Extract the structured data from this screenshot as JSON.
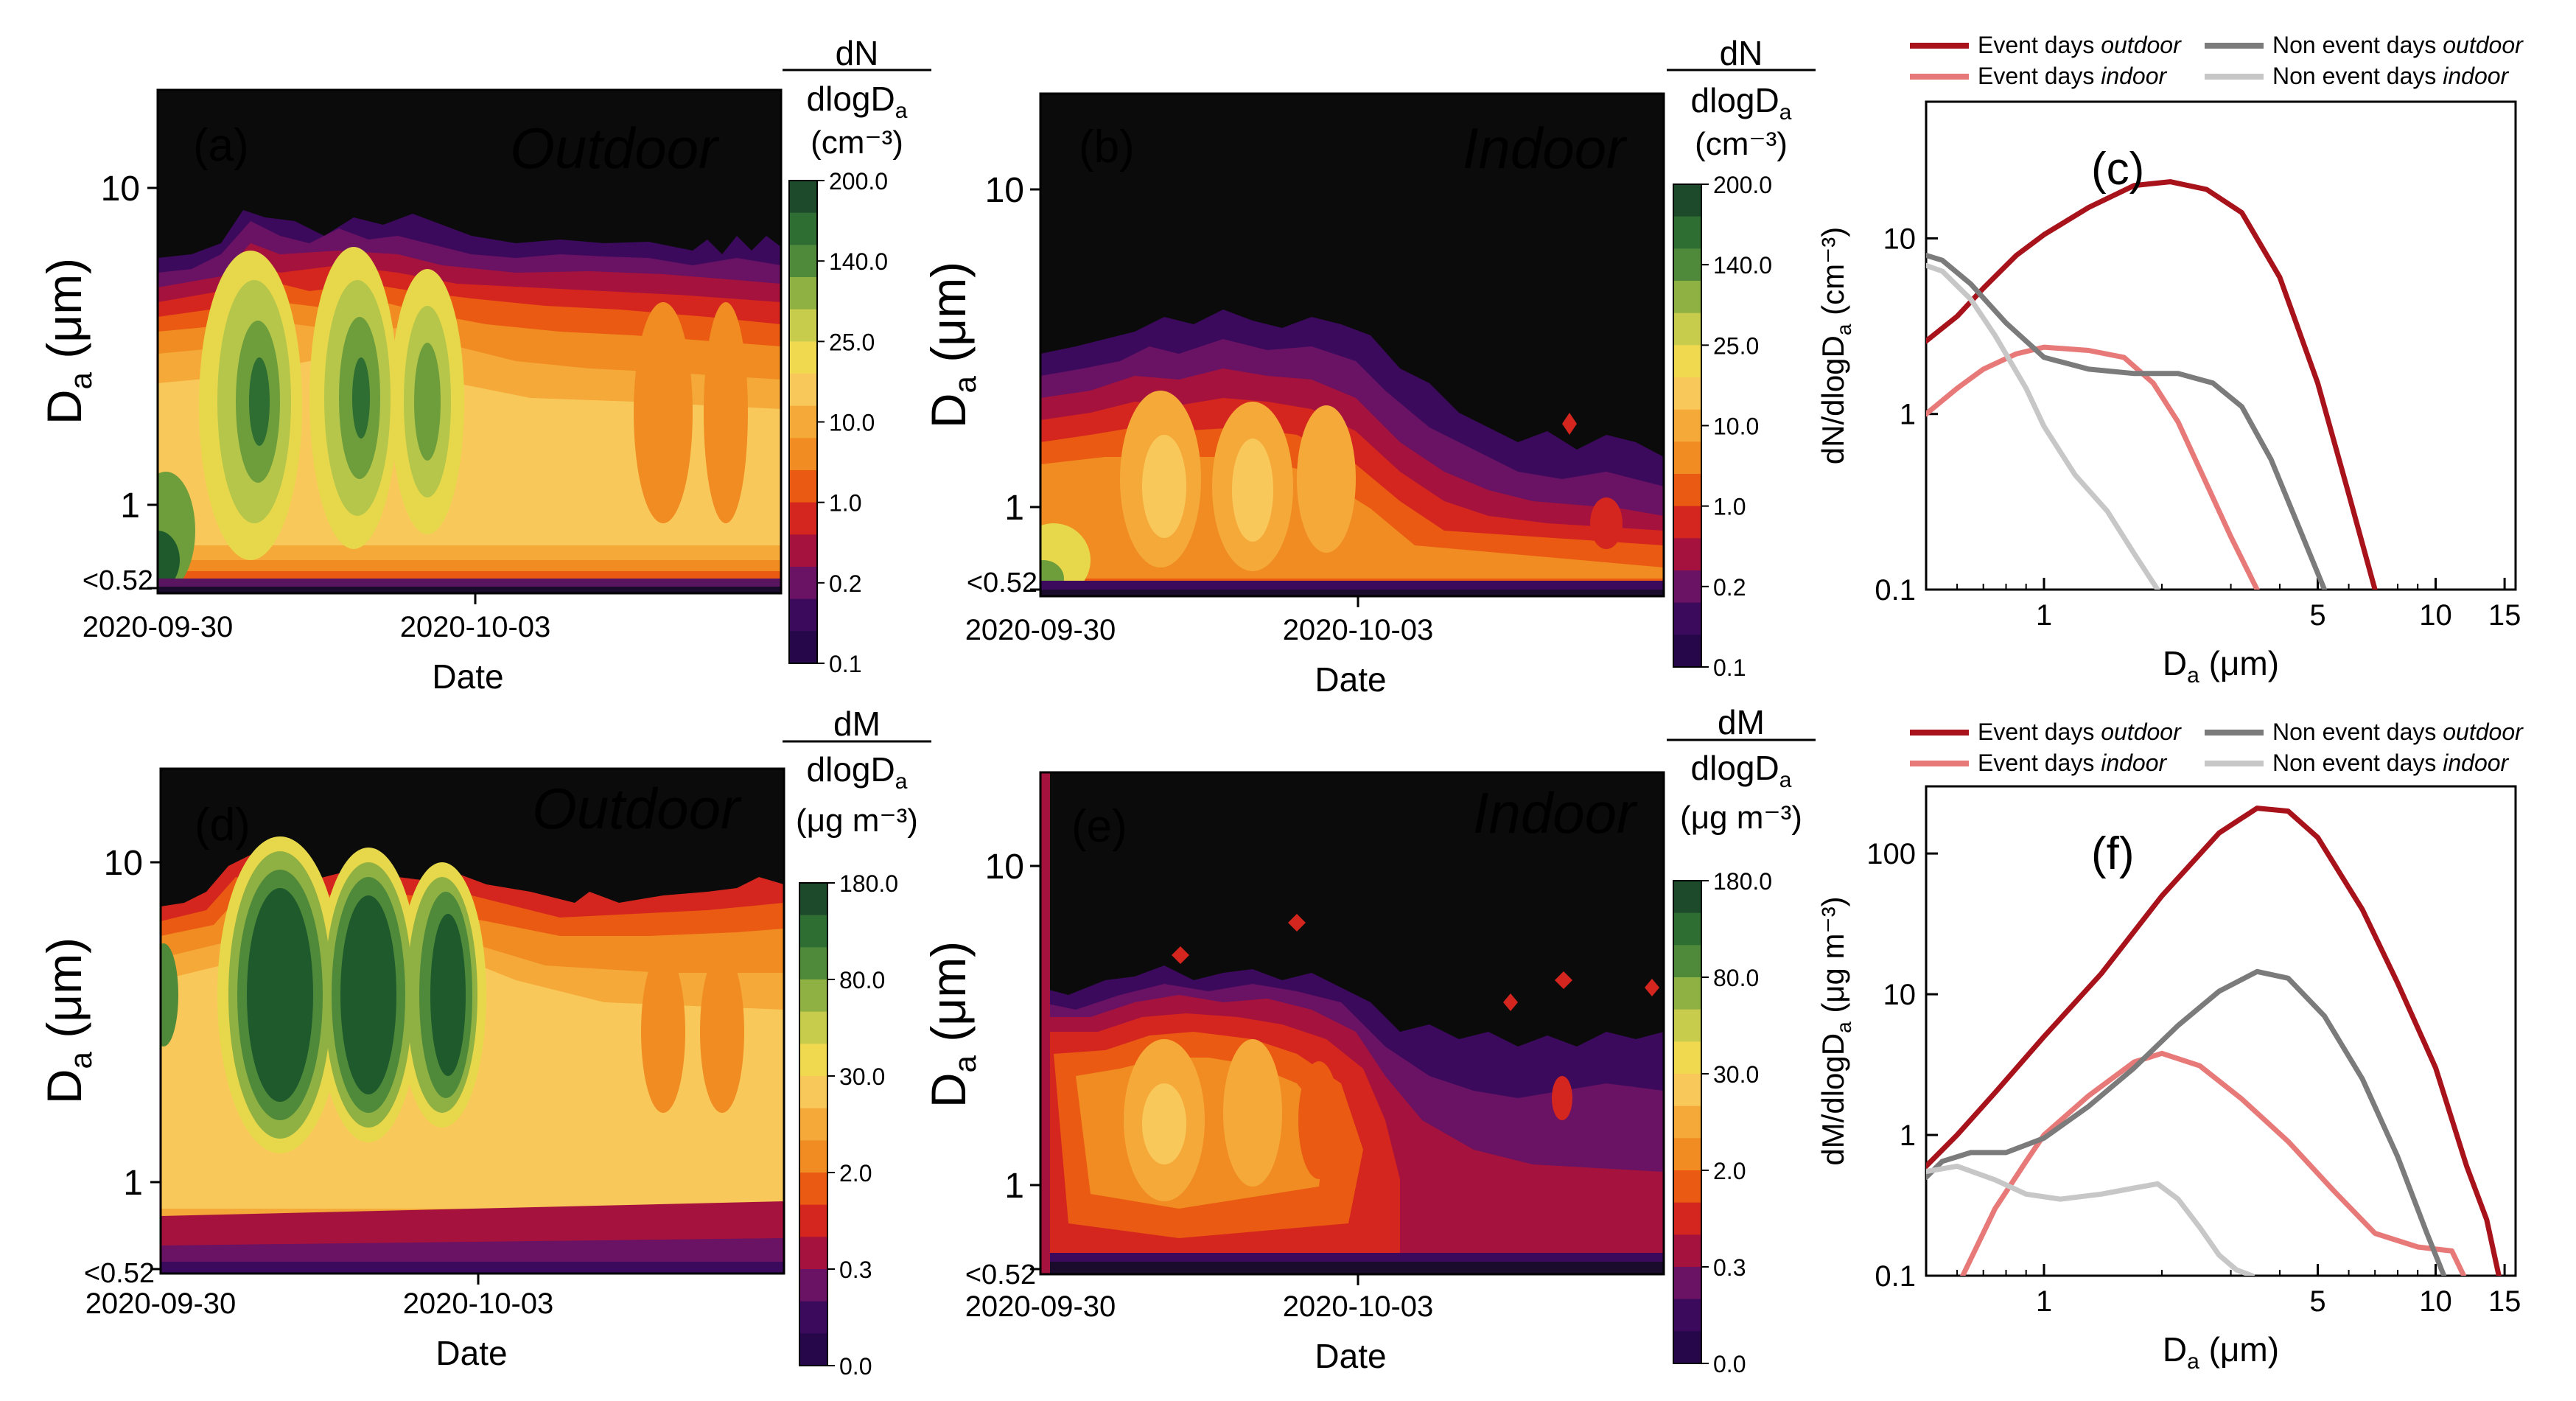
{
  "colors": {
    "dark_bg": "#0b0b0b",
    "event_outdoor": "#a8121a",
    "event_indoor": "#e77a78",
    "nonevent_outdoor": "#7b7b7b",
    "nonevent_indoor": "#c7c7c7"
  },
  "chart_data": [
    {
      "id": "a",
      "type": "heatmap",
      "panel_label": "(a)",
      "title": "Outdoor",
      "xlabel": "Date",
      "ylabel_main": "D",
      "ylabel_sub": "a",
      "ylabel_unit": " (μm)",
      "xticks": [
        "2020-09-30",
        "2020-10-03"
      ],
      "yticks": [
        "10",
        "1",
        "<0.52"
      ],
      "colorbar": {
        "top": "dN",
        "bottom_main": "dlogD",
        "bottom_sub": "a",
        "unit": "(cm⁻³)",
        "ticks": [
          "200.0",
          "140.0",
          "25.0",
          "10.0",
          "1.0",
          "0.2",
          "0.1"
        ]
      }
    },
    {
      "id": "b",
      "type": "heatmap",
      "panel_label": "(b)",
      "title": "Indoor",
      "xlabel": "Date",
      "ylabel_main": "D",
      "ylabel_sub": "a",
      "ylabel_unit": " (μm)",
      "xticks": [
        "2020-09-30",
        "2020-10-03"
      ],
      "yticks": [
        "10",
        "1",
        "<0.52"
      ],
      "colorbar": {
        "top": "dN",
        "bottom_main": "dlogD",
        "bottom_sub": "a",
        "unit": "(cm⁻³)",
        "ticks": [
          "200.0",
          "140.0",
          "25.0",
          "10.0",
          "1.0",
          "0.2",
          "0.1"
        ]
      }
    },
    {
      "id": "c",
      "type": "line",
      "panel_label": "(c)",
      "xlabel_main": "D",
      "xlabel_sub": "a",
      "xlabel_unit": " (μm)",
      "ylabel": "dN/dlogD",
      "ylabel_sub": "a",
      "ylabel_unit": " (cm⁻³)",
      "xscale": "log",
      "yscale": "log",
      "xlim": [
        0.5,
        16
      ],
      "ylim": [
        0.1,
        60
      ],
      "xticks": [
        1,
        5,
        10,
        15
      ],
      "yticks": [
        0.1,
        1,
        10
      ],
      "legend": [
        "Event days outdoor",
        "Event days indoor",
        "Non event days outdoor",
        "Non event days indoor"
      ],
      "series": [
        {
          "name": "Event days outdoor",
          "color_key": "event_outdoor",
          "x": [
            0.5,
            0.6,
            0.7,
            0.85,
            1.0,
            1.3,
            1.7,
            2.1,
            2.6,
            3.2,
            4.0,
            5.0,
            6.0,
            7.0
          ],
          "y": [
            2.6,
            3.6,
            5.2,
            8.0,
            10.5,
            15,
            20,
            21,
            19,
            14,
            6,
            1.5,
            0.35,
            0.1
          ]
        },
        {
          "name": "Event days indoor",
          "color_key": "event_indoor",
          "x": [
            0.5,
            0.6,
            0.7,
            0.85,
            1.0,
            1.3,
            1.6,
            1.9,
            2.2,
            2.6,
            3.0,
            3.5
          ],
          "y": [
            1.0,
            1.4,
            1.8,
            2.2,
            2.4,
            2.3,
            2.1,
            1.5,
            0.9,
            0.4,
            0.2,
            0.1
          ]
        },
        {
          "name": "Non event days outdoor",
          "color_key": "nonevent_outdoor",
          "x": [
            0.5,
            0.55,
            0.65,
            0.8,
            1.0,
            1.3,
            1.7,
            2.2,
            2.7,
            3.2,
            3.8,
            4.5,
            5.2
          ],
          "y": [
            8.0,
            7.5,
            5.5,
            3.3,
            2.1,
            1.8,
            1.7,
            1.7,
            1.5,
            1.1,
            0.55,
            0.22,
            0.1
          ]
        },
        {
          "name": "Non event days indoor",
          "color_key": "nonevent_indoor",
          "x": [
            0.5,
            0.55,
            0.65,
            0.75,
            0.9,
            1.0,
            1.2,
            1.45,
            1.7,
            1.95
          ],
          "y": [
            7.0,
            6.5,
            4.5,
            2.8,
            1.4,
            0.85,
            0.45,
            0.28,
            0.16,
            0.1
          ]
        }
      ]
    },
    {
      "id": "d",
      "type": "heatmap",
      "panel_label": "(d)",
      "title": "Outdoor",
      "xlabel": "Date",
      "ylabel_main": "D",
      "ylabel_sub": "a",
      "ylabel_unit": " (μm)",
      "xticks": [
        "2020-09-30",
        "2020-10-03"
      ],
      "yticks": [
        "10",
        "1",
        "<0.52"
      ],
      "colorbar": {
        "top": "dM",
        "bottom_main": "dlogD",
        "bottom_sub": "a",
        "unit": "(μg m⁻³)",
        "ticks": [
          "180.0",
          "80.0",
          "30.0",
          "2.0",
          "0.3",
          "0.0"
        ]
      }
    },
    {
      "id": "e",
      "type": "heatmap",
      "panel_label": "(e)",
      "title": "Indoor",
      "xlabel": "Date",
      "ylabel_main": "D",
      "ylabel_sub": "a",
      "ylabel_unit": " (μm)",
      "xticks": [
        "2020-09-30",
        "2020-10-03"
      ],
      "yticks": [
        "10",
        "1",
        "<0.52"
      ],
      "colorbar": {
        "top": "dM",
        "bottom_main": "dlogD",
        "bottom_sub": "a",
        "unit": "(μg m⁻³)",
        "ticks": [
          "180.0",
          "80.0",
          "30.0",
          "2.0",
          "0.3",
          "0.0"
        ]
      }
    },
    {
      "id": "f",
      "type": "line",
      "panel_label": "(f)",
      "xlabel_main": "D",
      "xlabel_sub": "a",
      "xlabel_unit": " (μm)",
      "ylabel": "dM/dlogD",
      "ylabel_sub": "a",
      "ylabel_unit": " (μg m⁻³)",
      "xscale": "log",
      "yscale": "log",
      "xlim": [
        0.5,
        16
      ],
      "ylim": [
        0.1,
        300
      ],
      "xticks": [
        1,
        5,
        10,
        15
      ],
      "yticks": [
        0.1,
        1,
        10,
        100
      ],
      "legend": [
        "Event days outdoor",
        "Event days indoor",
        "Non event days outdoor",
        "Non event days indoor"
      ],
      "series": [
        {
          "name": "Event days outdoor",
          "color_key": "event_outdoor",
          "x": [
            0.5,
            0.6,
            0.75,
            1.0,
            1.4,
            2.0,
            2.8,
            3.5,
            4.2,
            5.0,
            6.5,
            8.0,
            10,
            12,
            13.5,
            14.5
          ],
          "y": [
            0.6,
            1.0,
            2.0,
            5.0,
            14,
            50,
            140,
            210,
            200,
            130,
            40,
            12,
            3,
            0.6,
            0.25,
            0.1
          ]
        },
        {
          "name": "Event days indoor",
          "color_key": "event_indoor",
          "x": [
            0.62,
            0.75,
            0.9,
            1.0,
            1.3,
            1.7,
            2.0,
            2.5,
            3.2,
            4.2,
            5.5,
            7.0,
            9.0,
            11.0,
            11.8
          ],
          "y": [
            0.1,
            0.3,
            0.65,
            1.0,
            1.9,
            3.3,
            3.8,
            3.1,
            1.8,
            0.9,
            0.4,
            0.2,
            0.16,
            0.15,
            0.1
          ]
        },
        {
          "name": "Non event days outdoor",
          "color_key": "nonevent_outdoor",
          "x": [
            0.5,
            0.55,
            0.65,
            0.8,
            1.0,
            1.3,
            1.7,
            2.2,
            2.8,
            3.5,
            4.2,
            5.2,
            6.5,
            8.0,
            9.5,
            10.5
          ],
          "y": [
            0.5,
            0.65,
            0.75,
            0.75,
            0.95,
            1.6,
            3.0,
            6.0,
            10.5,
            14.5,
            13,
            7,
            2.5,
            0.7,
            0.2,
            0.1
          ]
        },
        {
          "name": "Non event days indoor",
          "color_key": "nonevent_indoor",
          "x": [
            0.5,
            0.6,
            0.75,
            0.9,
            1.1,
            1.4,
            1.7,
            1.95,
            2.2,
            2.5,
            2.8,
            3.1,
            3.4
          ],
          "y": [
            0.55,
            0.6,
            0.48,
            0.38,
            0.35,
            0.38,
            0.42,
            0.45,
            0.35,
            0.22,
            0.14,
            0.11,
            0.1
          ]
        }
      ]
    }
  ]
}
